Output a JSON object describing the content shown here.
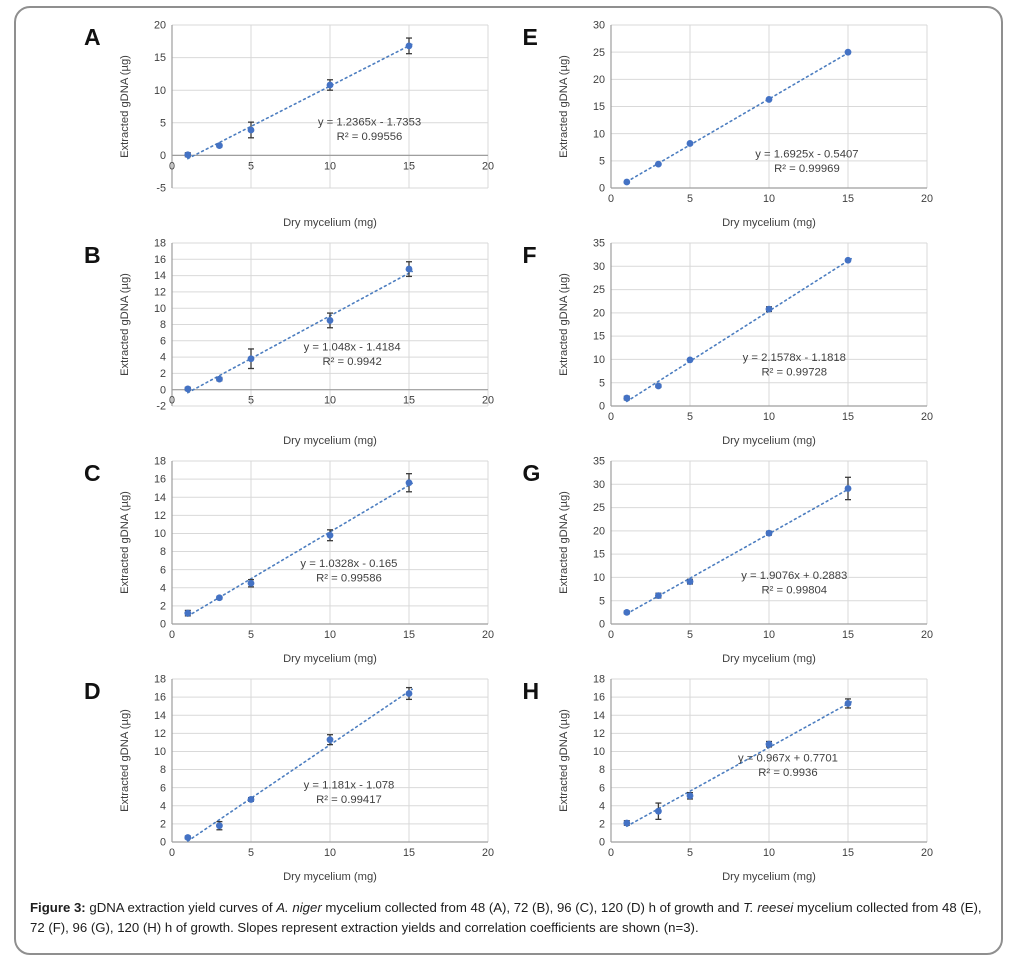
{
  "colors": {
    "point": "#4472c4",
    "trendline": "#4d7ec0",
    "grid": "#d9d9d9",
    "axis": "#9e9e9e",
    "text": "#3f3f3f",
    "error_bar": "#3a3a3a",
    "frame_border": "#8f8f8f"
  },
  "figure": {
    "caption_segments": [
      {
        "text": "Figure 3: ",
        "bold": true
      },
      {
        "text": "gDNA extraction yield curves of "
      },
      {
        "text": "A. niger",
        "italic": true
      },
      {
        "text": " mycelium collected from 48 (A), 72 (B), 96 (C), 120 (D) h of growth and "
      },
      {
        "text": "T. reesei",
        "italic": true
      },
      {
        "text": " mycelium collected from 48 (E), 72 (F), 96 (G), 120 (H) h of growth. Slopes represent extraction yields and correlation coefficients are shown (n=3)."
      }
    ]
  },
  "chart_data": [
    {
      "panel": "A",
      "type": "scatter",
      "column": "left",
      "x": [
        1,
        3,
        5,
        10,
        15
      ],
      "y": [
        0.1,
        1.5,
        3.9,
        10.8,
        16.8
      ],
      "yerr": [
        0.3,
        0.2,
        1.2,
        0.8,
        1.2
      ],
      "trendline": {
        "slope": 1.2365,
        "intercept": -1.7353,
        "equation": "y = 1.2365x - 1.7353",
        "r2_label": "R² = 0.99556"
      },
      "xlabel": "Dry mycelium (mg)",
      "ylabel": "Extracted gDNA (µg)",
      "xlim": [
        0,
        20
      ],
      "xticks": [
        0,
        5,
        10,
        15,
        20
      ],
      "ylim": [
        -5,
        20
      ],
      "ystep": 5,
      "eq_pos": {
        "x": 12.5,
        "y": 4.6
      }
    },
    {
      "panel": "E",
      "type": "scatter",
      "column": "right",
      "x": [
        1,
        3,
        5,
        10,
        15
      ],
      "y": [
        1.1,
        4.4,
        8.2,
        16.3,
        25.0
      ],
      "yerr": [
        0,
        0,
        0,
        0,
        0
      ],
      "trendline": {
        "slope": 1.6925,
        "intercept": -0.5407,
        "equation": "y = 1.6925x - 0.5407",
        "r2_label": "R² = 0.99969"
      },
      "xlabel": "Dry mycelium (mg)",
      "ylabel": "Extracted gDNA (µg)",
      "xlim": [
        0,
        20
      ],
      "xticks": [
        0,
        5,
        10,
        15,
        20
      ],
      "ylim": [
        0,
        30
      ],
      "ystep": 5,
      "eq_pos": {
        "x": 12.4,
        "y": 5.6
      }
    },
    {
      "panel": "B",
      "type": "scatter",
      "column": "left",
      "x": [
        1,
        3,
        5,
        10,
        15
      ],
      "y": [
        0.1,
        1.3,
        3.8,
        8.5,
        14.8
      ],
      "yerr": [
        0.2,
        0.2,
        1.2,
        0.9,
        0.9
      ],
      "trendline": {
        "slope": 1.048,
        "intercept": -1.4184,
        "equation": "y = 1.048x - 1.4184",
        "r2_label": "R² = 0.9942"
      },
      "xlabel": "Dry mycelium (mg)",
      "ylabel": "Extracted gDNA (µg)",
      "xlim": [
        0,
        20
      ],
      "xticks": [
        0,
        5,
        10,
        15,
        20
      ],
      "ylim": [
        -2,
        18
      ],
      "ystep": 2,
      "eq_pos": {
        "x": 11.4,
        "y": 4.8
      }
    },
    {
      "panel": "F",
      "type": "scatter",
      "column": "right",
      "x": [
        1,
        3,
        5,
        10,
        15
      ],
      "y": [
        1.7,
        4.3,
        9.9,
        20.8,
        31.3
      ],
      "yerr": [
        0.4,
        0.3,
        0,
        0.5,
        0
      ],
      "trendline": {
        "slope": 2.1578,
        "intercept": -1.1818,
        "equation": "y = 2.1578x - 1.1818",
        "r2_label": "R² = 0.99728"
      },
      "xlabel": "Dry mycelium (mg)",
      "ylabel": "Extracted gDNA (µg)",
      "xlim": [
        0,
        20
      ],
      "xticks": [
        0,
        5,
        10,
        15,
        20
      ],
      "ylim": [
        0,
        35
      ],
      "ystep": 5,
      "eq_pos": {
        "x": 11.6,
        "y": 9.7
      }
    },
    {
      "panel": "C",
      "type": "scatter",
      "column": "left",
      "x": [
        1,
        3,
        5,
        10,
        15
      ],
      "y": [
        1.2,
        2.9,
        4.5,
        9.8,
        15.6
      ],
      "yerr": [
        0.3,
        0.15,
        0.4,
        0.6,
        1.0
      ],
      "trendline": {
        "slope": 1.0328,
        "intercept": -0.165,
        "equation": "y = 1.0328x - 0.165",
        "r2_label": "R² = 0.99586"
      },
      "xlabel": "Dry mycelium (mg)",
      "ylabel": "Extracted gDNA (µg)",
      "xlim": [
        0,
        20
      ],
      "xticks": [
        0,
        5,
        10,
        15,
        20
      ],
      "ylim": [
        0,
        18
      ],
      "ystep": 2,
      "eq_pos": {
        "x": 11.2,
        "y": 6.3
      }
    },
    {
      "panel": "G",
      "type": "scatter",
      "column": "right",
      "x": [
        1,
        3,
        5,
        10,
        15
      ],
      "y": [
        2.5,
        6.1,
        9.1,
        19.5,
        29.1
      ],
      "yerr": [
        0.3,
        0.5,
        0.5,
        0.4,
        2.4
      ],
      "trendline": {
        "slope": 1.9076,
        "intercept": 0.2883,
        "equation": "y = 1.9076x + 0.2883",
        "r2_label": "R² = 0.99804"
      },
      "xlabel": "Dry mycelium (mg)",
      "ylabel": "Extracted gDNA (µg)",
      "xlim": [
        0,
        20
      ],
      "xticks": [
        0,
        5,
        10,
        15,
        20
      ],
      "ylim": [
        0,
        35
      ],
      "ystep": 5,
      "eq_pos": {
        "x": 11.6,
        "y": 9.7
      }
    },
    {
      "panel": "D",
      "type": "scatter",
      "column": "left",
      "x": [
        1,
        3,
        5,
        10,
        15
      ],
      "y": [
        0.5,
        1.8,
        4.7,
        11.3,
        16.4
      ],
      "yerr": [
        0.15,
        0.45,
        0.2,
        0.55,
        0.65
      ],
      "trendline": {
        "slope": 1.181,
        "intercept": -1.078,
        "equation": "y = 1.181x - 1.078",
        "r2_label": "R² = 0.99417"
      },
      "xlabel": "Dry mycelium (mg)",
      "ylabel": "Extracted gDNA (µg)",
      "xlim": [
        0,
        20
      ],
      "xticks": [
        0,
        5,
        10,
        15,
        20
      ],
      "ylim": [
        0,
        18
      ],
      "ystep": 2,
      "eq_pos": {
        "x": 11.2,
        "y": 5.9
      }
    },
    {
      "panel": "H",
      "type": "scatter",
      "column": "right",
      "x": [
        1,
        3,
        5,
        10,
        15
      ],
      "y": [
        2.1,
        3.4,
        5.1,
        10.8,
        15.3
      ],
      "yerr": [
        0.25,
        0.9,
        0.35,
        0.3,
        0.5
      ],
      "trendline": {
        "slope": 0.967,
        "intercept": 0.7701,
        "equation": "y = 0.967x + 0.7701",
        "r2_label": "R² = 0.9936"
      },
      "xlabel": "Dry mycelium (mg)",
      "ylabel": "Extracted gDNA (µg)",
      "xlim": [
        0,
        20
      ],
      "xticks": [
        0,
        5,
        10,
        15,
        20
      ],
      "ylim": [
        0,
        18
      ],
      "ystep": 2,
      "eq_pos": {
        "x": 11.2,
        "y": 8.9
      }
    }
  ]
}
